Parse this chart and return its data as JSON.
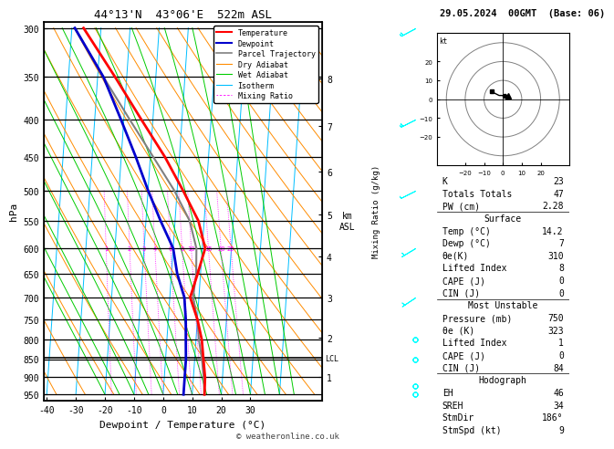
{
  "title_left": "44°13'N  43°06'E  522m ASL",
  "title_right": "29.05.2024  00GMT  (Base: 06)",
  "xlabel": "Dewpoint / Temperature (°C)",
  "ylabel_left": "hPa",
  "isotherm_color": "#00bfff",
  "dry_adiabat_color": "#ff8c00",
  "wet_adiabat_color": "#00cc00",
  "mixing_ratio_color": "#ff00ff",
  "parcel_color": "#808080",
  "temp_profile_color": "#ff0000",
  "dewp_profile_color": "#0000cd",
  "pressure_ticks": [
    300,
    350,
    400,
    450,
    500,
    550,
    600,
    650,
    700,
    750,
    800,
    850,
    900,
    950
  ],
  "temp_ticks": [
    -40,
    -30,
    -20,
    -10,
    0,
    10,
    20,
    30
  ],
  "mixing_ratio_values": [
    1,
    2,
    3,
    4,
    6,
    8,
    10,
    15,
    20,
    25
  ],
  "km_ticks": [
    1,
    2,
    3,
    4,
    5,
    6,
    7,
    8
  ],
  "km_pressures": [
    899,
    795,
    701,
    616,
    540,
    471,
    408,
    352
  ],
  "legend_items": [
    {
      "label": "Temperature",
      "color": "#ff0000",
      "style": "solid",
      "lw": 1.5
    },
    {
      "label": "Dewpoint",
      "color": "#0000cd",
      "style": "solid",
      "lw": 1.5
    },
    {
      "label": "Parcel Trajectory",
      "color": "#808080",
      "style": "solid",
      "lw": 1.2
    },
    {
      "label": "Dry Adiabat",
      "color": "#ff8c00",
      "style": "solid",
      "lw": 0.8
    },
    {
      "label": "Wet Adiabat",
      "color": "#00cc00",
      "style": "solid",
      "lw": 0.8
    },
    {
      "label": "Isotherm",
      "color": "#00bfff",
      "style": "solid",
      "lw": 0.8
    },
    {
      "label": "Mixing Ratio",
      "color": "#ff00ff",
      "style": "dashed",
      "lw": 0.6
    }
  ],
  "temp_data": {
    "pressure": [
      300,
      350,
      400,
      450,
      500,
      550,
      600,
      650,
      700,
      750,
      800,
      850,
      900,
      950
    ],
    "temp": [
      -36,
      -24,
      -14,
      -5,
      2,
      8,
      11,
      9,
      7,
      10,
      12,
      13,
      14,
      14.2
    ]
  },
  "dewp_data": {
    "pressure": [
      300,
      350,
      400,
      450,
      500,
      550,
      600,
      650,
      700,
      750,
      800,
      850,
      900,
      950
    ],
    "temp": [
      -39,
      -28,
      -21,
      -15,
      -10,
      -5,
      0,
      2,
      5,
      6,
      6.5,
      7,
      7,
      7
    ]
  },
  "parcel_data": {
    "pressure": [
      300,
      350,
      400,
      450,
      500,
      550,
      600,
      650,
      700,
      750,
      800,
      850,
      900,
      950
    ],
    "temp": [
      -39,
      -28,
      -18,
      -9,
      -1,
      5,
      8,
      8.5,
      8,
      10,
      11,
      12.5,
      13.5,
      14.2
    ]
  },
  "lcl_pressure": 847,
  "wind_pressures": [
    300,
    400,
    500,
    600,
    700,
    800,
    850,
    925,
    950
  ],
  "wind_u": [
    15,
    12,
    8,
    5,
    3,
    2,
    1,
    0,
    0
  ],
  "wind_v": [
    8,
    6,
    4,
    3,
    2,
    1,
    1,
    1,
    1
  ],
  "copyright": "© weatheronline.co.uk",
  "stats_rows": [
    [
      "K",
      "23"
    ],
    [
      "Totals Totals",
      "47"
    ],
    [
      "PW (cm)",
      "2.28"
    ]
  ],
  "surface_rows": [
    [
      "Temp (°C)",
      "14.2"
    ],
    [
      "Dewp (°C)",
      "7"
    ],
    [
      "θe(K)",
      "310"
    ],
    [
      "Lifted Index",
      "8"
    ],
    [
      "CAPE (J)",
      "0"
    ],
    [
      "CIN (J)",
      "0"
    ]
  ],
  "mu_rows": [
    [
      "Pressure (mb)",
      "750"
    ],
    [
      "θe (K)",
      "323"
    ],
    [
      "Lifted Index",
      "1"
    ],
    [
      "CAPE (J)",
      "0"
    ],
    [
      "CIN (J)",
      "84"
    ]
  ],
  "hodo_rows": [
    [
      "EH",
      "46"
    ],
    [
      "SREH",
      "34"
    ],
    [
      "StmDir",
      "186°"
    ],
    [
      "StmSpd (kt)",
      "9"
    ]
  ]
}
